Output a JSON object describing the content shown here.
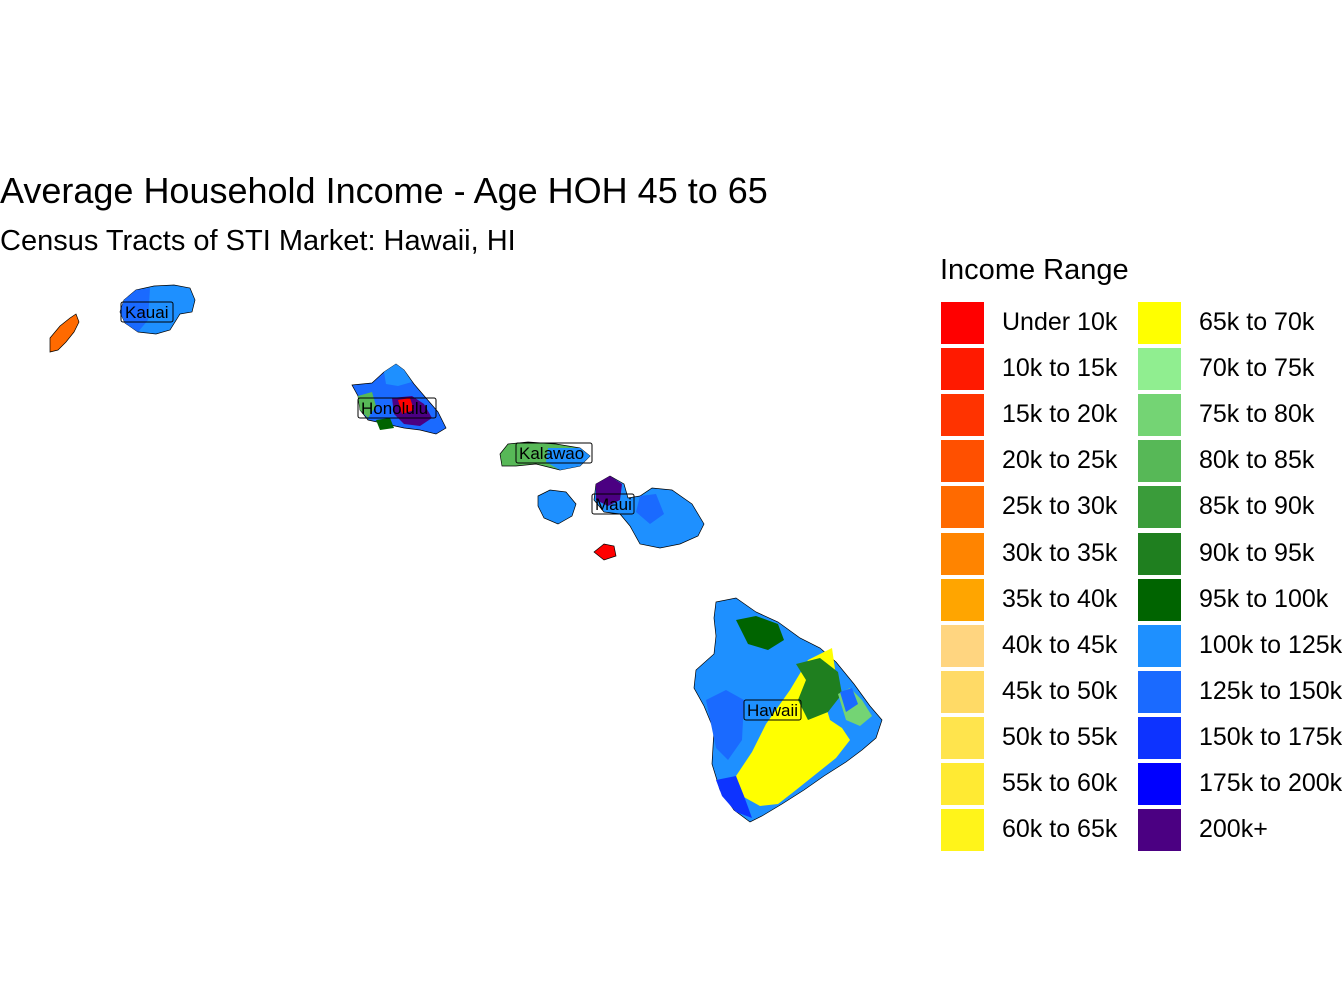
{
  "title": "Average Household Income - Age HOH 45 to 65",
  "subtitle": "Census Tracts of STI Market: Hawaii, HI",
  "legend": {
    "title": "Income Range",
    "items": [
      {
        "label": "Under 10k",
        "color": "#FF0000"
      },
      {
        "label": "10k to 15k",
        "color": "#FF1A00"
      },
      {
        "label": "15k to 20k",
        "color": "#FF3300"
      },
      {
        "label": "20k to 25k",
        "color": "#FF5000"
      },
      {
        "label": "25k to 30k",
        "color": "#FF6A00"
      },
      {
        "label": "30k to 35k",
        "color": "#FF8400"
      },
      {
        "label": "35k to 40k",
        "color": "#FFA500"
      },
      {
        "label": "40k to 45k",
        "color": "#FFD580"
      },
      {
        "label": "45k to 50k",
        "color": "#FFDA66"
      },
      {
        "label": "50k to 55k",
        "color": "#FFE44D"
      },
      {
        "label": "55k to 60k",
        "color": "#FFEA33"
      },
      {
        "label": "60k to 65k",
        "color": "#FFF41A"
      },
      {
        "label": "65k to 70k",
        "color": "#FFFF00"
      },
      {
        "label": "70k to 75k",
        "color": "#90EE90"
      },
      {
        "label": "75k to 80k",
        "color": "#74D474"
      },
      {
        "label": "80k to 85k",
        "color": "#57B857"
      },
      {
        "label": "85k to 90k",
        "color": "#3A9C3A"
      },
      {
        "label": "90k to 95k",
        "color": "#1F7F1F"
      },
      {
        "label": "95k to 100k",
        "color": "#006400"
      },
      {
        "label": "100k to 125k",
        "color": "#1E90FF"
      },
      {
        "label": "125k to 150k",
        "color": "#1A6AFF"
      },
      {
        "label": "150k to 175k",
        "color": "#0D33FF"
      },
      {
        "label": "175k to 200k",
        "color": "#0000FF"
      },
      {
        "label": "200k+",
        "color": "#4B0082"
      }
    ]
  },
  "county_labels": {
    "kauai": "Kauai",
    "honolulu": "Honolulu",
    "kalawao": "Kalawao",
    "maui": "Maui",
    "hawaii": "Hawaii"
  }
}
